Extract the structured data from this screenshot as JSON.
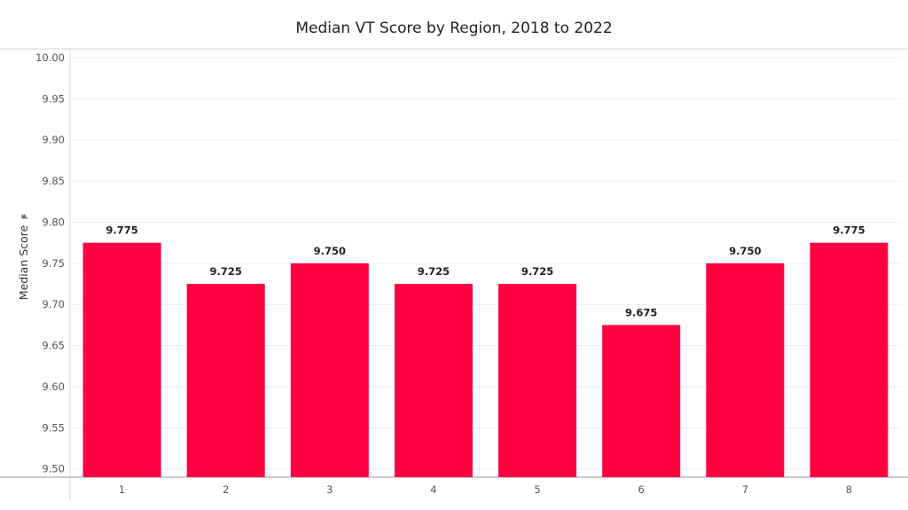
{
  "chart_data": {
    "type": "bar",
    "title": "Median VT Score by Region, 2018 to 2022",
    "xlabel": "",
    "ylabel": "Median Score",
    "ylabel_icon": "pin-icon",
    "categories": [
      "1",
      "2",
      "3",
      "4",
      "5",
      "6",
      "7",
      "8"
    ],
    "values": [
      9.775,
      9.725,
      9.75,
      9.725,
      9.725,
      9.675,
      9.75,
      9.775
    ],
    "value_labels": [
      "9.775",
      "9.725",
      "9.750",
      "9.725",
      "9.725",
      "9.675",
      "9.750",
      "9.775"
    ],
    "ylim": [
      9.49,
      10.0
    ],
    "yticks": [
      9.5,
      9.55,
      9.6,
      9.65,
      9.7,
      9.75,
      9.8,
      9.85,
      9.9,
      9.95,
      10.0
    ],
    "ytick_labels": [
      "9.50",
      "9.55",
      "9.60",
      "9.65",
      "9.70",
      "9.75",
      "9.80",
      "9.85",
      "9.90",
      "9.95",
      "10.00"
    ],
    "grid": true,
    "legend": "none",
    "bar_color": "#ff0040"
  }
}
